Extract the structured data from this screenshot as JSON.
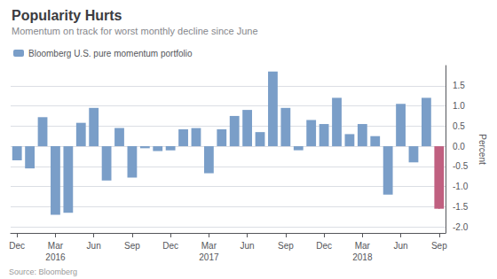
{
  "chart_data": {
    "type": "bar",
    "title": "Popularity Hurts",
    "subtitle": "Momentum on track for worst monthly decline since June",
    "annotations": [
      "Source: Bloomberg"
    ],
    "ylabel": "Percent",
    "categories": [
      "Dec",
      null,
      null,
      "Mar\n2016",
      null,
      null,
      "Jun",
      null,
      null,
      "Sep",
      null,
      null,
      "Dec",
      null,
      null,
      "Mar\n2017",
      null,
      null,
      "Jun",
      null,
      null,
      "Sep",
      null,
      null,
      "Dec",
      null,
      null,
      "Mar\n2018",
      null,
      null,
      "Jun",
      null,
      null,
      "Sep"
    ],
    "series": [
      {
        "name": "Bloomberg U.S. pure momentum portfolio",
        "color": "#7a9ec8",
        "values": [
          -0.35,
          -0.55,
          0.72,
          -1.7,
          -1.65,
          0.58,
          0.95,
          -0.85,
          0.45,
          -0.78,
          -0.05,
          -0.12,
          -0.1,
          0.42,
          0.45,
          -0.67,
          0.42,
          0.75,
          0.9,
          0.35,
          1.85,
          0.95,
          -0.1,
          0.65,
          0.55,
          1.2,
          0.3,
          0.55,
          0.25,
          -1.2,
          1.05,
          -0.4,
          1.2,
          -1.55
        ],
        "colors": [
          "#7a9ec8",
          "#7a9ec8",
          "#7a9ec8",
          "#7a9ec8",
          "#7a9ec8",
          "#7a9ec8",
          "#7a9ec8",
          "#7a9ec8",
          "#7a9ec8",
          "#7a9ec8",
          "#7a9ec8",
          "#7a9ec8",
          "#7a9ec8",
          "#7a9ec8",
          "#7a9ec8",
          "#7a9ec8",
          "#7a9ec8",
          "#7a9ec8",
          "#7a9ec8",
          "#7a9ec8",
          "#7a9ec8",
          "#7a9ec8",
          "#7a9ec8",
          "#7a9ec8",
          "#7a9ec8",
          "#7a9ec8",
          "#7a9ec8",
          "#7a9ec8",
          "#7a9ec8",
          "#7a9ec8",
          "#7a9ec8",
          "#7a9ec8",
          "#7a9ec8",
          "#c06080"
        ]
      }
    ],
    "ylim": [
      -2.15,
      2.0
    ],
    "yticks": [
      {
        "value": -2.0,
        "label": "-2.0"
      },
      {
        "value": -1.5,
        "label": "-1.5"
      },
      {
        "value": -1.0,
        "label": "-1.0"
      },
      {
        "value": -0.5,
        "label": "-0.5"
      },
      {
        "value": 0.0,
        "label": "0.0"
      },
      {
        "value": 0.5,
        "label": "0.5"
      },
      {
        "value": 1.0,
        "label": "1.0"
      },
      {
        "value": 1.5,
        "label": "1.5"
      }
    ],
    "grid": true,
    "legend": "upper left"
  }
}
